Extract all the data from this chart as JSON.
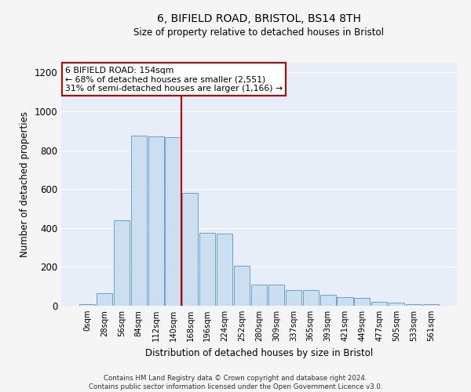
{
  "title": "6, BIFIELD ROAD, BRISTOL, BS14 8TH",
  "subtitle": "Size of property relative to detached houses in Bristol",
  "xlabel": "Distribution of detached houses by size in Bristol",
  "ylabel": "Number of detached properties",
  "bar_labels": [
    "0sqm",
    "28sqm",
    "56sqm",
    "84sqm",
    "112sqm",
    "140sqm",
    "168sqm",
    "196sqm",
    "224sqm",
    "252sqm",
    "280sqm",
    "309sqm",
    "337sqm",
    "365sqm",
    "393sqm",
    "421sqm",
    "449sqm",
    "477sqm",
    "505sqm",
    "533sqm",
    "561sqm"
  ],
  "bar_values": [
    10,
    65,
    440,
    875,
    870,
    865,
    580,
    375,
    370,
    205,
    110,
    110,
    80,
    80,
    55,
    45,
    42,
    20,
    17,
    10,
    10
  ],
  "bar_color": "#ccdff0",
  "bar_edge_color": "#5599cc",
  "background_color": "#e8eef8",
  "grid_color": "#ffffff",
  "property_line_x": 5.5,
  "annotation_text_line1": "6 BIFIELD ROAD: 154sqm",
  "annotation_text_line2": "← 68% of detached houses are smaller (2,551)",
  "annotation_text_line3": "31% of semi-detached houses are larger (1,166) →",
  "annotation_box_color": "#ffffff",
  "annotation_box_edge": "#cc0000",
  "red_line_color": "#cc0000",
  "footer_line1": "Contains HM Land Registry data © Crown copyright and database right 2024.",
  "footer_line2": "Contains public sector information licensed under the Open Government Licence v3.0.",
  "ylim": [
    0,
    1250
  ],
  "yticks": [
    0,
    200,
    400,
    600,
    800,
    1000,
    1200
  ],
  "fig_bg": "#f5f5f5"
}
